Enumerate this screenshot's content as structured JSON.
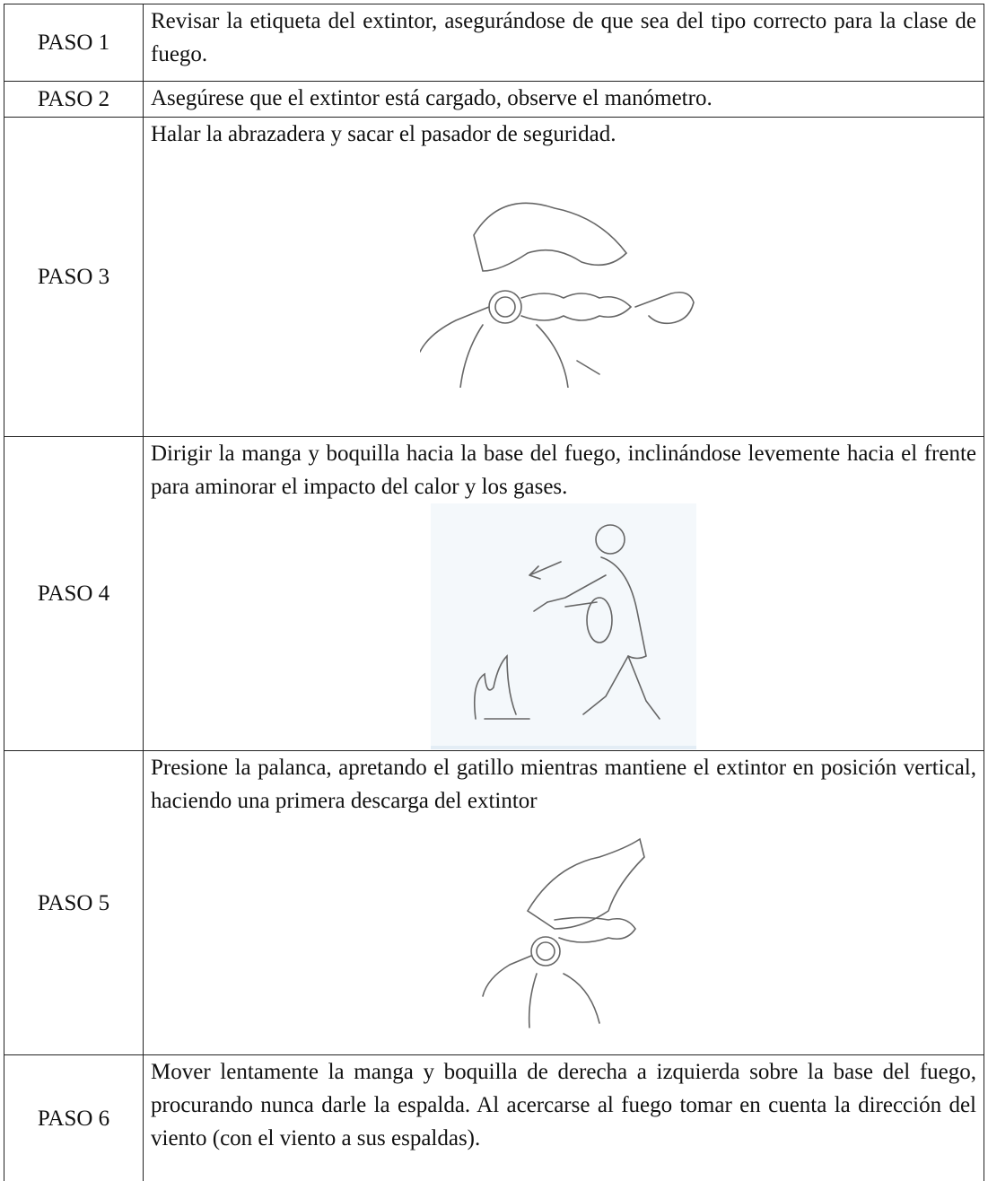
{
  "table": {
    "rows": [
      {
        "step": "PASO 1",
        "text": "Revisar la etiqueta del extintor, asegurándose de que sea del tipo correcto para la clase de fuego."
      },
      {
        "step": "PASO 2",
        "text": "Asegúrese que el extintor está cargado, observe el manómetro."
      },
      {
        "step": "PASO 3",
        "text": "Halar la abrazadera y sacar el pasador de seguridad."
      },
      {
        "step": "PASO 4",
        "text": "Dirigir la manga y boquilla hacia la base del fuego, inclinándose levemente hacia el frente para aminorar el impacto del calor y los gases."
      },
      {
        "step": "PASO 5",
        "text": "Presione la palanca, apretando el gatillo mientras mantiene el extintor en posición vertical, haciendo una primera descarga del extintor"
      },
      {
        "step": "PASO 6",
        "text": "Mover lentamente la manga y boquilla de derecha a izquierda sobre la base del fuego, procurando nunca darle la espalda. Al acercarse al fuego tomar en cuenta la dirección del viento (con el viento a sus espaldas)."
      }
    ]
  }
}
